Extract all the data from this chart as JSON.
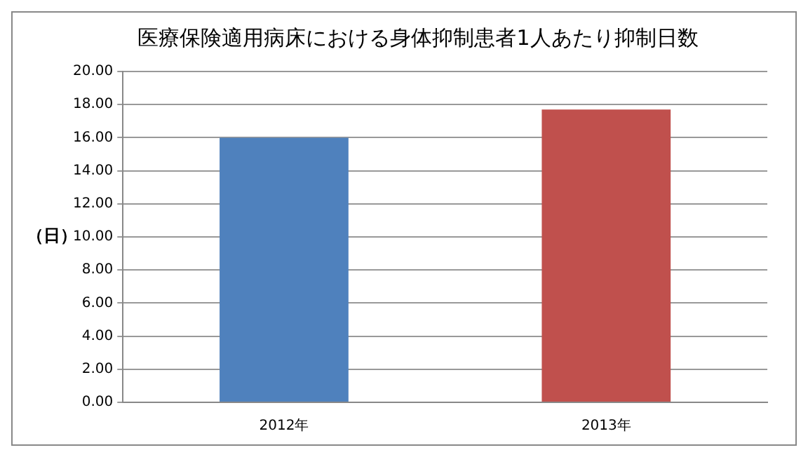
{
  "chart_data": {
    "type": "bar",
    "title": "医療保険適用病床における身体抑制患者1人あたり抑制日数",
    "ylabel": "（日）",
    "categories": [
      "2012年",
      "2013年"
    ],
    "values": [
      16.0,
      17.7
    ],
    "colors": [
      "#4f81bd",
      "#c0504d"
    ],
    "ylim": [
      0,
      20
    ],
    "yticks": [
      {
        "value": 0,
        "label": "0.00"
      },
      {
        "value": 2,
        "label": "2.00"
      },
      {
        "value": 4,
        "label": "4.00"
      },
      {
        "value": 6,
        "label": "6.00"
      },
      {
        "value": 8,
        "label": "8.00"
      },
      {
        "value": 10,
        "label": "10.00"
      },
      {
        "value": 12,
        "label": "12.00"
      },
      {
        "value": 14,
        "label": "14.00"
      },
      {
        "value": 16,
        "label": "16.00"
      },
      {
        "value": 18,
        "label": "18.00"
      },
      {
        "value": 20,
        "label": "20.00"
      }
    ],
    "grid": "y",
    "legend": false
  }
}
